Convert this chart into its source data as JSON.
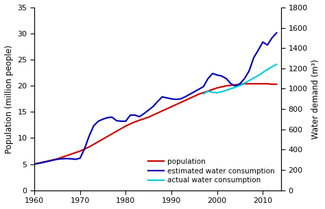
{
  "population_years": [
    1960,
    1961,
    1962,
    1963,
    1964,
    1965,
    1966,
    1967,
    1968,
    1969,
    1970,
    1971,
    1972,
    1973,
    1974,
    1975,
    1976,
    1977,
    1978,
    1979,
    1980,
    1981,
    1982,
    1983,
    1984,
    1985,
    1986,
    1987,
    1988,
    1989,
    1990,
    1991,
    1992,
    1993,
    1994,
    1995,
    1996,
    1997,
    1998,
    1999,
    2000,
    2001,
    2002,
    2003,
    2004,
    2005,
    2006,
    2007,
    2008,
    2009,
    2010,
    2011,
    2012,
    2013
  ],
  "population_values": [
    5.0,
    5.2,
    5.4,
    5.6,
    5.8,
    6.0,
    6.3,
    6.6,
    6.9,
    7.2,
    7.5,
    7.9,
    8.3,
    8.8,
    9.3,
    9.8,
    10.3,
    10.8,
    11.3,
    11.8,
    12.3,
    12.7,
    13.1,
    13.4,
    13.7,
    14.0,
    14.4,
    14.8,
    15.2,
    15.6,
    16.0,
    16.4,
    16.8,
    17.2,
    17.6,
    18.0,
    18.4,
    18.7,
    19.0,
    19.3,
    19.6,
    19.8,
    20.0,
    20.1,
    20.2,
    20.3,
    20.4,
    20.4,
    20.4,
    20.4,
    20.4,
    20.4,
    20.3,
    20.3
  ],
  "estimated_years": [
    1960,
    1961,
    1962,
    1963,
    1964,
    1965,
    1966,
    1967,
    1968,
    1969,
    1970,
    1971,
    1972,
    1973,
    1974,
    1975,
    1976,
    1977,
    1978,
    1979,
    1980,
    1981,
    1982,
    1983,
    1984,
    1985,
    1986,
    1987,
    1988,
    1989,
    1990,
    1991,
    1992,
    1993,
    1994,
    1995,
    1996,
    1997,
    1998,
    1999,
    2000,
    2001,
    2002,
    2003,
    2004,
    2005,
    2006,
    2007,
    2008,
    2009,
    2010,
    2011,
    2012,
    2013
  ],
  "estimated_values_m3": [
    260,
    265,
    275,
    285,
    295,
    305,
    310,
    312,
    310,
    305,
    315,
    410,
    535,
    635,
    680,
    700,
    715,
    720,
    685,
    680,
    680,
    740,
    740,
    725,
    755,
    790,
    825,
    875,
    920,
    910,
    900,
    895,
    900,
    920,
    945,
    970,
    995,
    1020,
    1100,
    1150,
    1135,
    1125,
    1100,
    1050,
    1025,
    1050,
    1100,
    1175,
    1305,
    1380,
    1460,
    1430,
    1500,
    1550
  ],
  "actual_years": [
    1997,
    1998,
    1999,
    2000,
    2001,
    2002,
    2003,
    2004,
    2005,
    2006,
    2007,
    2008,
    2009,
    2010,
    2011,
    2012,
    2013
  ],
  "actual_values_m3": [
    950,
    975,
    965,
    960,
    970,
    985,
    1000,
    1015,
    1030,
    1055,
    1080,
    1105,
    1130,
    1160,
    1190,
    1215,
    1240
  ],
  "pop_color": "#cc0000",
  "estimated_color": "#0000bb",
  "actual_color": "#00ccdd",
  "left_ylim": [
    0,
    35
  ],
  "right_ylim": [
    0,
    1800
  ],
  "left_yticks": [
    0,
    5,
    10,
    15,
    20,
    25,
    30,
    35
  ],
  "right_yticks": [
    0,
    200,
    400,
    600,
    800,
    1000,
    1200,
    1400,
    1600,
    1800
  ],
  "xlim": [
    1960,
    2014
  ],
  "xticks": [
    1960,
    1970,
    1980,
    1990,
    2000,
    2010
  ],
  "xlabel": "",
  "left_ylabel": "Population (million people)",
  "right_ylabel": "Water demand (m³)",
  "legend_labels": [
    "population",
    "estimated water consumption",
    "actual water consumption"
  ],
  "bg_color": "#ffffff",
  "line_width": 1.6
}
